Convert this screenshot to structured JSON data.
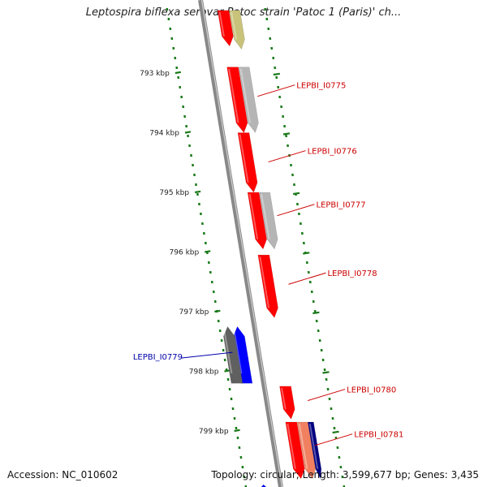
{
  "title": "Leptospira biflexa serovar Patoc strain 'Patoc 1 (Paris)' ch...",
  "footer": {
    "accession": "Accession: NC_010602",
    "summary": "Topology: circular; Length: 3,599,677 bp; Genes: 3,435"
  },
  "ticks": [
    {
      "label": "793 kbp",
      "kbp": 793
    },
    {
      "label": "794 kbp",
      "kbp": 794
    },
    {
      "label": "795 kbp",
      "kbp": 795
    },
    {
      "label": "796 kbp",
      "kbp": 796
    },
    {
      "label": "797 kbp",
      "kbp": 797
    },
    {
      "label": "798 kbp",
      "kbp": 798
    },
    {
      "label": "799 kbp",
      "kbp": 799
    }
  ],
  "colors": {
    "backbone": "#888888",
    "cds_forward": "#ff0000",
    "cds_reverse": "#0000ff",
    "gene_grey": "#b5b5b5",
    "gene_dark": "#606060",
    "gene_olive": "#c8c27a",
    "gene_salmon": "#f08060",
    "gene_navy": "#000080",
    "tick": "#1a7a1a",
    "label_forward": "#cc0000",
    "label_reverse": "#0000aa"
  },
  "genes": [
    {
      "id": "top-red",
      "start": 791.95,
      "end": 792.55,
      "lane": 1,
      "strand": "+",
      "color": "cds_forward"
    },
    {
      "id": "top-olive",
      "start": 791.95,
      "end": 792.6,
      "lane": 2,
      "strand": "+",
      "color": "gene_olive"
    },
    {
      "id": "LEPBI_I0775",
      "label": "LEPBI_I0775",
      "labelKbp": 793.2,
      "start": 792.9,
      "end": 794.0,
      "lane": 1,
      "strand": "+",
      "color": "cds_forward"
    },
    {
      "id": "grey-0775",
      "start": 792.9,
      "end": 794.0,
      "lane": 2,
      "strand": "+",
      "color": "gene_grey"
    },
    {
      "id": "LEPBI_I0776",
      "label": "LEPBI_I0776",
      "labelKbp": 794.3,
      "start": 794.0,
      "end": 795.0,
      "lane": 1,
      "strand": "+",
      "color": "cds_forward"
    },
    {
      "id": "LEPBI_I0777",
      "label": "LEPBI_I0777",
      "labelKbp": 795.2,
      "start": 795.0,
      "end": 795.95,
      "lane": 1,
      "strand": "+",
      "color": "cds_forward"
    },
    {
      "id": "grey-0777",
      "start": 795.0,
      "end": 795.95,
      "lane": 2,
      "strand": "+",
      "color": "gene_grey"
    },
    {
      "id": "LEPBI_I0778",
      "label": "LEPBI_I0778",
      "labelKbp": 796.35,
      "start": 796.05,
      "end": 797.1,
      "lane": 1,
      "strand": "+",
      "color": "cds_forward"
    },
    {
      "id": "LEPBI_I0779",
      "label": "LEPBI_I0779",
      "labelKbp": 797.75,
      "start": 797.25,
      "end": 798.2,
      "lane": -1,
      "strand": "-",
      "color": "cds_reverse"
    },
    {
      "id": "dark-0779",
      "start": 797.25,
      "end": 798.2,
      "lane": -2,
      "strand": "-",
      "color": "gene_dark"
    },
    {
      "id": "LEPBI_I0780",
      "label": "LEPBI_I0780",
      "labelKbp": 798.3,
      "start": 798.25,
      "end": 798.8,
      "lane": 1,
      "strand": "+",
      "color": "cds_forward"
    },
    {
      "id": "LEPBI_I0781",
      "label": "LEPBI_I0781",
      "labelKbp": 799.05,
      "start": 798.85,
      "end": 799.8,
      "lane": 1,
      "strand": "+",
      "color": "cds_forward"
    },
    {
      "id": "salmon-0781",
      "start": 798.85,
      "end": 799.8,
      "lane": 2,
      "strand": "+",
      "color": "gene_salmon"
    },
    {
      "id": "navy-0781",
      "start": 798.85,
      "end": 799.8,
      "lane": 3,
      "strand": "+",
      "color": "gene_navy"
    },
    {
      "id": "bottom-blue",
      "start": 799.9,
      "end": 800.2,
      "lane": -1,
      "strand": "-",
      "color": "cds_reverse"
    }
  ]
}
